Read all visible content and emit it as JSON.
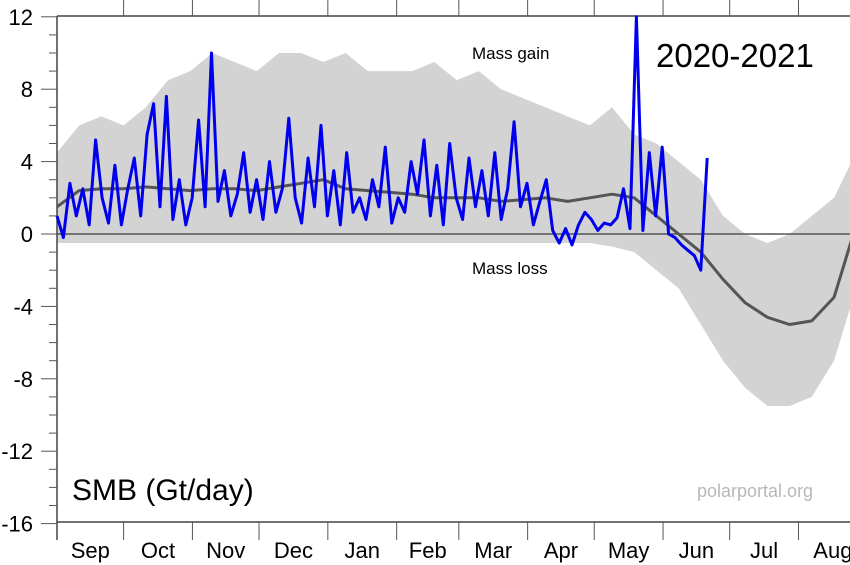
{
  "chart_data": {
    "type": "line",
    "title": "2020-2021",
    "ylabel": "SMB (Gt/day)",
    "xlabel": "",
    "annotations": {
      "gain": "Mass gain",
      "loss": "Mass loss",
      "source": "polarportal.org"
    },
    "ylim": [
      -16,
      12
    ],
    "yticks": [
      12,
      8,
      4,
      0,
      -4,
      -8,
      -12,
      -16
    ],
    "months": [
      {
        "label": "Sep",
        "start_day": 0,
        "days": 30
      },
      {
        "label": "Oct",
        "start_day": 30,
        "days": 31
      },
      {
        "label": "Nov",
        "start_day": 61,
        "days": 30
      },
      {
        "label": "Dec",
        "start_day": 91,
        "days": 31
      },
      {
        "label": "Jan",
        "start_day": 122,
        "days": 31
      },
      {
        "label": "Feb",
        "start_day": 153,
        "days": 28
      },
      {
        "label": "Mar",
        "start_day": 181,
        "days": 31
      },
      {
        "label": "Apr",
        "start_day": 212,
        "days": 30
      },
      {
        "label": "May",
        "start_day": 242,
        "days": 31
      },
      {
        "label": "Jun",
        "start_day": 273,
        "days": 30
      },
      {
        "label": "Jul",
        "start_day": 303,
        "days": 31
      },
      {
        "label": "Aug",
        "start_day": 334,
        "days": 31
      }
    ],
    "colors": {
      "current": "#0000ee",
      "mean": "#555555",
      "range": "#d3d3d3"
    },
    "series": [
      {
        "name": "range_max",
        "day_step": 10,
        "values": [
          4.5,
          6,
          6.5,
          6,
          7,
          8.5,
          9,
          10,
          9.5,
          9,
          10,
          10,
          9.5,
          10,
          9,
          9,
          9,
          9.5,
          8.5,
          9,
          8,
          7.5,
          7,
          6.5,
          6,
          7,
          5.5,
          5,
          4,
          3,
          1,
          0,
          -0.5,
          0,
          1,
          2,
          4.5
        ]
      },
      {
        "name": "range_min",
        "day_step": 10,
        "values": [
          -0.5,
          -0.5,
          -0.5,
          -0.5,
          -0.5,
          -0.5,
          -0.5,
          -0.5,
          -0.5,
          -0.5,
          -0.5,
          -0.5,
          -0.5,
          -0.5,
          -0.5,
          -0.5,
          -0.5,
          -0.5,
          -0.5,
          -0.5,
          -0.5,
          -0.5,
          -0.5,
          -0.5,
          -0.5,
          -0.7,
          -1,
          -2,
          -3,
          -5,
          -7,
          -8.5,
          -9.5,
          -9.5,
          -9,
          -7,
          -3
        ]
      },
      {
        "name": "mean",
        "day_step": 10,
        "values": [
          1.5,
          2.4,
          2.5,
          2.5,
          2.6,
          2.5,
          2.4,
          2.5,
          2.5,
          2.4,
          2.6,
          2.8,
          3,
          2.5,
          2.4,
          2.3,
          2.2,
          2,
          2,
          2,
          1.8,
          1.9,
          2,
          1.8,
          2,
          2.2,
          2,
          1,
          0,
          -1,
          -2.5,
          -3.8,
          -4.6,
          -5,
          -4.8,
          -3.5,
          0.5
        ]
      },
      {
        "name": "2020-2021",
        "day_step": 2.9,
        "values": [
          1.0,
          -0.2,
          2.8,
          1.0,
          2.5,
          0.5,
          5.2,
          2.0,
          0.6,
          3.8,
          0.5,
          2.5,
          4.2,
          1.0,
          5.5,
          7.2,
          1.5,
          7.6,
          0.8,
          3.0,
          0.5,
          2.0,
          6.3,
          1.5,
          10.0,
          1.8,
          3.5,
          1.0,
          2.2,
          4.5,
          1.2,
          3.0,
          0.8,
          4.0,
          1.2,
          2.5,
          6.4,
          2.0,
          0.6,
          4.2,
          1.5,
          6.0,
          1.0,
          3.5,
          0.5,
          4.5,
          1.2,
          2.0,
          0.8,
          3.0,
          1.5,
          4.8,
          0.6,
          2.0,
          1.2,
          4.0,
          2.2,
          5.2,
          1.0,
          3.8,
          0.5,
          5.0,
          2.0,
          0.8,
          4.2,
          1.5,
          3.5,
          1.0,
          4.5,
          0.8,
          2.5,
          6.2,
          1.5,
          2.8,
          0.5,
          1.8,
          3.0,
          0.2,
          -0.5,
          0.3,
          -0.6,
          0.5,
          1.2,
          0.8,
          0.2,
          0.6,
          0.5,
          0.9,
          2.5,
          0.3,
          12.0,
          0.2,
          4.5,
          1.0,
          4.8,
          0.0,
          -0.2,
          -0.6,
          -0.9,
          -1.2,
          -2.0,
          4.2
        ]
      }
    ]
  }
}
